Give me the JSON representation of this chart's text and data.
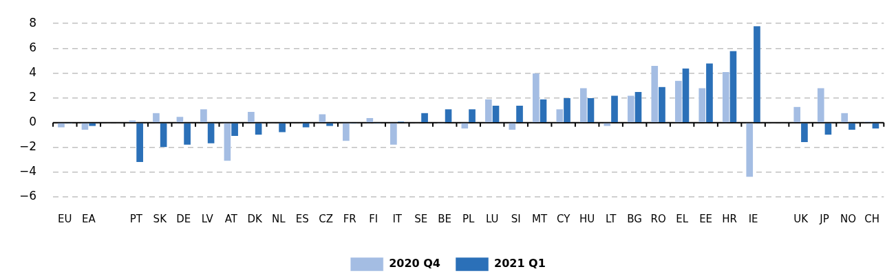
{
  "chart_data": {
    "type": "bar",
    "categories": [
      "EU",
      "EA",
      null,
      "PT",
      "SK",
      "DE",
      "LV",
      "AT",
      "DK",
      "NL",
      "ES",
      "CZ",
      "FR",
      "FI",
      "IT",
      "SE",
      "BE",
      "PL",
      "LU",
      "SI",
      "MT",
      "CY",
      "HU",
      "LT",
      "BG",
      "RO",
      "EL",
      "EE",
      "HR",
      "IE",
      null,
      "UK",
      "JP",
      "NO",
      "CH"
    ],
    "series": [
      {
        "name": "2020 Q4",
        "color": "#a4bde3",
        "values": [
          -0.4,
          -0.6,
          null,
          0.2,
          0.8,
          0.5,
          1.1,
          -3.1,
          0.9,
          0.0,
          0.0,
          0.7,
          -1.5,
          0.4,
          -1.8,
          0.0,
          -0.1,
          -0.5,
          1.9,
          -0.6,
          4.0,
          1.1,
          2.8,
          -0.3,
          2.2,
          4.6,
          3.4,
          2.8,
          4.1,
          -4.4,
          null,
          1.3,
          2.8,
          0.8,
          0.1
        ]
      },
      {
        "name": "2021 Q1",
        "color": "#2b70b8",
        "values": [
          -0.1,
          -0.3,
          null,
          -3.2,
          -2.0,
          -1.8,
          -1.7,
          -1.1,
          -1.0,
          -0.8,
          -0.4,
          -0.3,
          -0.1,
          -0.1,
          0.1,
          0.8,
          1.1,
          1.1,
          1.4,
          1.4,
          1.9,
          2.0,
          2.0,
          2.2,
          2.5,
          2.9,
          4.4,
          4.8,
          5.8,
          7.8,
          null,
          -1.6,
          -1.0,
          -0.6,
          -0.5
        ]
      }
    ],
    "ylim": [
      -6,
      8
    ],
    "yticks": [
      -6,
      -4,
      -2,
      0,
      2,
      4,
      6,
      8
    ],
    "grid": "y",
    "legend": "bottom"
  }
}
